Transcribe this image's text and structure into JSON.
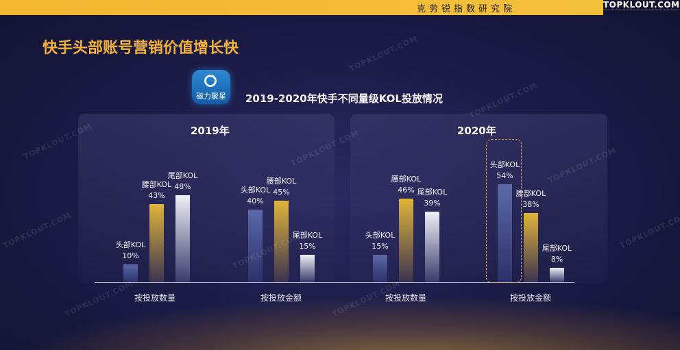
{
  "header": {
    "bar_text": "克劳锐指数研究院",
    "brand": "TOPKLOUT.COM"
  },
  "page_title": "快手头部账号营销价值增长快",
  "logo_text": "磁力聚星",
  "watermark": "TOPKLOUT.COM",
  "colors": {
    "accent": "#f3b23a",
    "head_bar": "#5c68a8",
    "mid_bar": "#e0b53a",
    "tail_bar": "#f0f0f8"
  },
  "chart_data": {
    "type": "bar",
    "title": "2019-2020年快手不同量级KOL投放情况",
    "ylim": [
      0,
      60
    ],
    "panels": [
      {
        "year": "2019年",
        "groups": [
          {
            "name": "按投放数量",
            "series": [
              {
                "name": "头部KOL",
                "value": 10,
                "label": "10%"
              },
              {
                "name": "腰部KOL",
                "value": 43,
                "label": "43%"
              },
              {
                "name": "尾部KOL",
                "value": 48,
                "label": "48%"
              }
            ]
          },
          {
            "name": "按投放金额",
            "series": [
              {
                "name": "头部KOL",
                "value": 40,
                "label": "40%"
              },
              {
                "name": "腰部KOL",
                "value": 45,
                "label": "45%"
              },
              {
                "name": "尾部KOL",
                "value": 15,
                "label": "15%"
              }
            ]
          }
        ]
      },
      {
        "year": "2020年",
        "groups": [
          {
            "name": "按投放数量",
            "series": [
              {
                "name": "头部KOL",
                "value": 15,
                "label": "15%"
              },
              {
                "name": "腰部KOL",
                "value": 46,
                "label": "46%"
              },
              {
                "name": "尾部KOL",
                "value": 39,
                "label": "39%"
              }
            ]
          },
          {
            "name": "按投放金额",
            "series": [
              {
                "name": "头部KOL",
                "value": 54,
                "label": "54%"
              },
              {
                "name": "腰部KOL",
                "value": 38,
                "label": "38%"
              },
              {
                "name": "尾部KOL",
                "value": 8,
                "label": "8%"
              }
            ]
          }
        ]
      }
    ]
  }
}
